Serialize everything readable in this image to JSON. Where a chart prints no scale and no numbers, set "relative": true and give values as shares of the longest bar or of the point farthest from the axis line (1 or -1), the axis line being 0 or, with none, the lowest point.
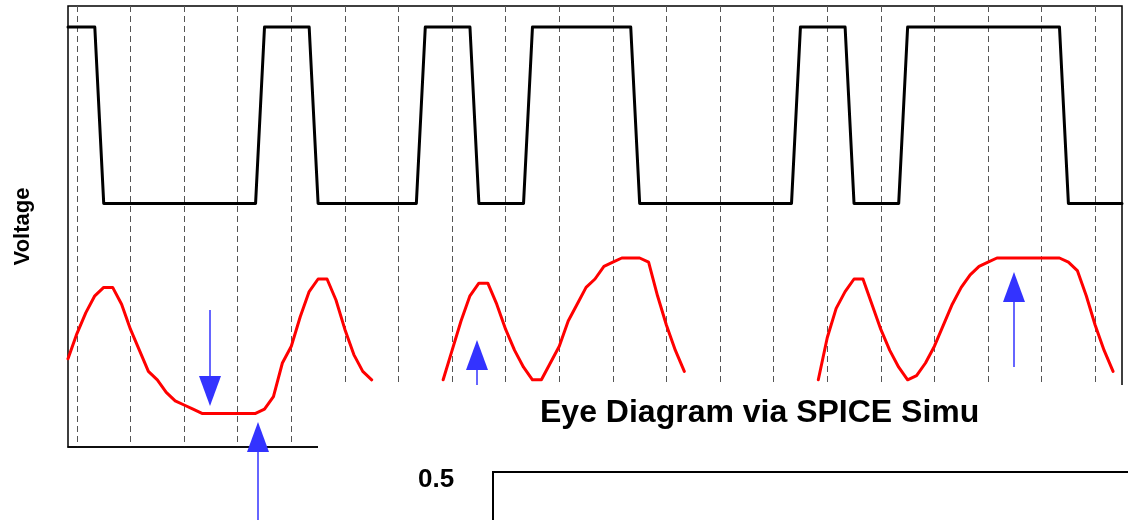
{
  "chart_data": [
    {
      "type": "line",
      "ylabel": "Voltage",
      "relative": true,
      "grid": "x",
      "marker": "none",
      "line_style": "solid",
      "categories": [
        null,
        null,
        null,
        null,
        null,
        null,
        null,
        null,
        null,
        null,
        null,
        null,
        null,
        null,
        null,
        null,
        null,
        null,
        null,
        null,
        null,
        null,
        null,
        null,
        null,
        null,
        null,
        null,
        null,
        null,
        null,
        null,
        null,
        null,
        null,
        null,
        null,
        null,
        null,
        null,
        null,
        null,
        null,
        null,
        null,
        null,
        null,
        null,
        null,
        null,
        null,
        null,
        null,
        null,
        null,
        null,
        null,
        null,
        null,
        null,
        null,
        null,
        null,
        null,
        null,
        null,
        null,
        null,
        null,
        null,
        null,
        null,
        null,
        null,
        null,
        null,
        null,
        null,
        null,
        null,
        null,
        null,
        null,
        null,
        null,
        null,
        null,
        null,
        null,
        null,
        null,
        null,
        null,
        null,
        null,
        null,
        null,
        null,
        null,
        null,
        null,
        null,
        null,
        null,
        null,
        null,
        null,
        null,
        null,
        null,
        null,
        null,
        null,
        null,
        null,
        null,
        null,
        null,
        null
      ],
      "series": [
        {
          "color": "#000000",
          "values": [
            1,
            1,
            1,
            1,
            0.58,
            0.58,
            0.58,
            0.58,
            0.58,
            0.58,
            0.58,
            0.58,
            0.58,
            0.58,
            0.58,
            0.58,
            0.58,
            0.58,
            0.58,
            0.58,
            0.58,
            0.58,
            1,
            1,
            1,
            1,
            1,
            1,
            0.58,
            0.58,
            0.58,
            0.58,
            0.58,
            0.58,
            0.58,
            0.58,
            0.58,
            0.58,
            0.58,
            0.58,
            1,
            1,
            1,
            1,
            1,
            1,
            0.58,
            0.58,
            0.58,
            0.58,
            0.58,
            0.58,
            1,
            1,
            1,
            1,
            1,
            1,
            1,
            1,
            1,
            1,
            1,
            1,
            0.58,
            0.58,
            0.58,
            0.58,
            0.58,
            0.58,
            0.58,
            0.58,
            0.58,
            0.58,
            0.58,
            0.58,
            0.58,
            0.58,
            0.58,
            0.58,
            0.58,
            0.58,
            1,
            1,
            1,
            1,
            1,
            1,
            0.58,
            0.58,
            0.58,
            0.58,
            0.58,
            0.58,
            1,
            1,
            1,
            1,
            1,
            1,
            1,
            1,
            1,
            1,
            1,
            1,
            1,
            1,
            1,
            1,
            1,
            1,
            0.58,
            0.58,
            0.58,
            0.58,
            0.58,
            0.58,
            0.58
          ]
        },
        {
          "color": "#ff0000",
          "values": [
            0.21,
            0.27,
            0.32,
            0.36,
            0.38,
            0.38,
            0.34,
            0.28,
            0.23,
            0.18,
            0.16,
            0.13,
            0.11,
            0.1,
            0.09,
            0.08,
            0.08,
            0.08,
            0.08,
            0.08,
            0.08,
            0.08,
            0.09,
            0.12,
            0.2,
            0.24,
            0.31,
            0.37,
            0.4,
            0.4,
            0.35,
            0.28,
            0.22,
            0.18,
            0.16,
            null,
            null,
            null,
            null,
            null,
            null,
            null,
            0.16,
            0.23,
            0.3,
            0.36,
            0.39,
            0.39,
            0.34,
            0.28,
            0.23,
            0.19,
            0.16,
            0.16,
            0.2,
            0.24,
            0.3,
            0.34,
            0.38,
            0.4,
            0.43,
            0.44,
            0.45,
            0.45,
            0.45,
            0.44,
            0.36,
            0.29,
            0.23,
            0.18,
            null,
            null,
            null,
            null,
            null,
            null,
            null,
            null,
            null,
            null,
            null,
            null,
            null,
            null,
            0.16,
            0.26,
            0.33,
            0.37,
            0.4,
            0.4,
            0.34,
            0.28,
            0.23,
            0.19,
            0.16,
            0.17,
            0.2,
            0.24,
            0.29,
            0.34,
            0.38,
            0.41,
            0.43,
            0.44,
            0.45,
            0.45,
            0.45,
            0.45,
            0.45,
            0.45,
            0.45,
            0.45,
            0.44,
            0.42,
            0.36,
            0.29,
            0.23,
            0.18,
            null
          ]
        }
      ]
    },
    {
      "type": "other",
      "title": "Eye Diagram via SPICE Simu",
      "annotations": [
        "0.5"
      ]
    }
  ]
}
